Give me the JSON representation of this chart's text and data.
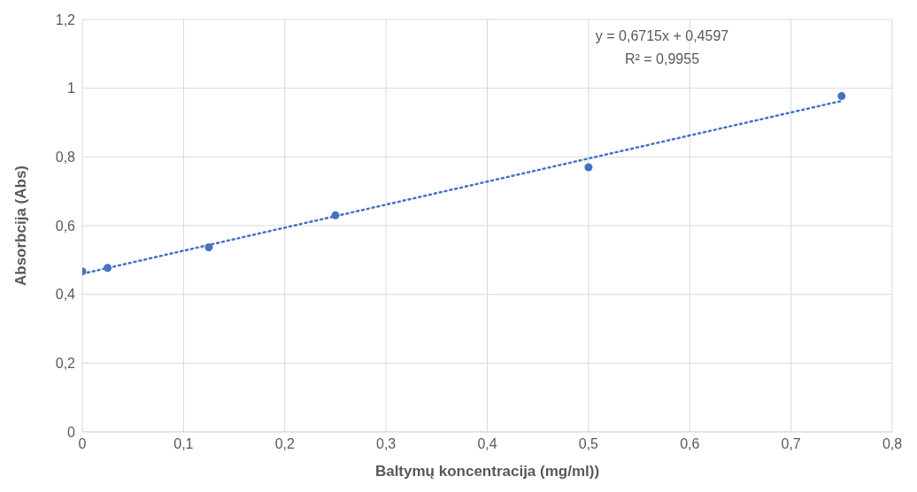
{
  "chart_data": {
    "type": "scatter",
    "xlabel": "Baltymų koncentracija (mg/ml))",
    "ylabel": "Absorbcija (Abs)",
    "series": [
      {
        "color": "#4472c4",
        "marker": "circle",
        "x": [
          0,
          0.025,
          0.125,
          0.25,
          0.5,
          0.75
        ],
        "values": [
          0.467,
          0.477,
          0.537,
          0.63,
          0.77,
          0.977
        ]
      },
      {
        "type": "line",
        "color": "#4472c4",
        "marker": "none",
        "line_style": "dotted",
        "x": [
          0,
          0.75
        ],
        "values": [
          0.46,
          0.963
        ]
      }
    ],
    "annotations": [
      "y = 0,6715x + 0,4597",
      "R² = 0,9955"
    ],
    "xlim": [
      0,
      0.8
    ],
    "xticks": [
      {
        "value": 0,
        "label": "0"
      },
      {
        "value": 0.1,
        "label": "0,1"
      },
      {
        "value": 0.2,
        "label": "0,2"
      },
      {
        "value": 0.3,
        "label": "0,3"
      },
      {
        "value": 0.4,
        "label": "0,4"
      },
      {
        "value": 0.5,
        "label": "0,5"
      },
      {
        "value": 0.6,
        "label": "0,6"
      },
      {
        "value": 0.7,
        "label": "0,7"
      },
      {
        "value": 0.8,
        "label": "0,8"
      }
    ],
    "ylim": [
      0,
      1.2
    ],
    "yticks": [
      {
        "value": 0,
        "label": "0"
      },
      {
        "value": 0.2,
        "label": "0,2"
      },
      {
        "value": 0.4,
        "label": "0,4"
      },
      {
        "value": 0.6,
        "label": "0,6"
      },
      {
        "value": 0.8,
        "label": "0,8"
      },
      {
        "value": 1,
        "label": "1"
      },
      {
        "value": 1.2,
        "label": "1,2"
      }
    ],
    "grid": true
  }
}
